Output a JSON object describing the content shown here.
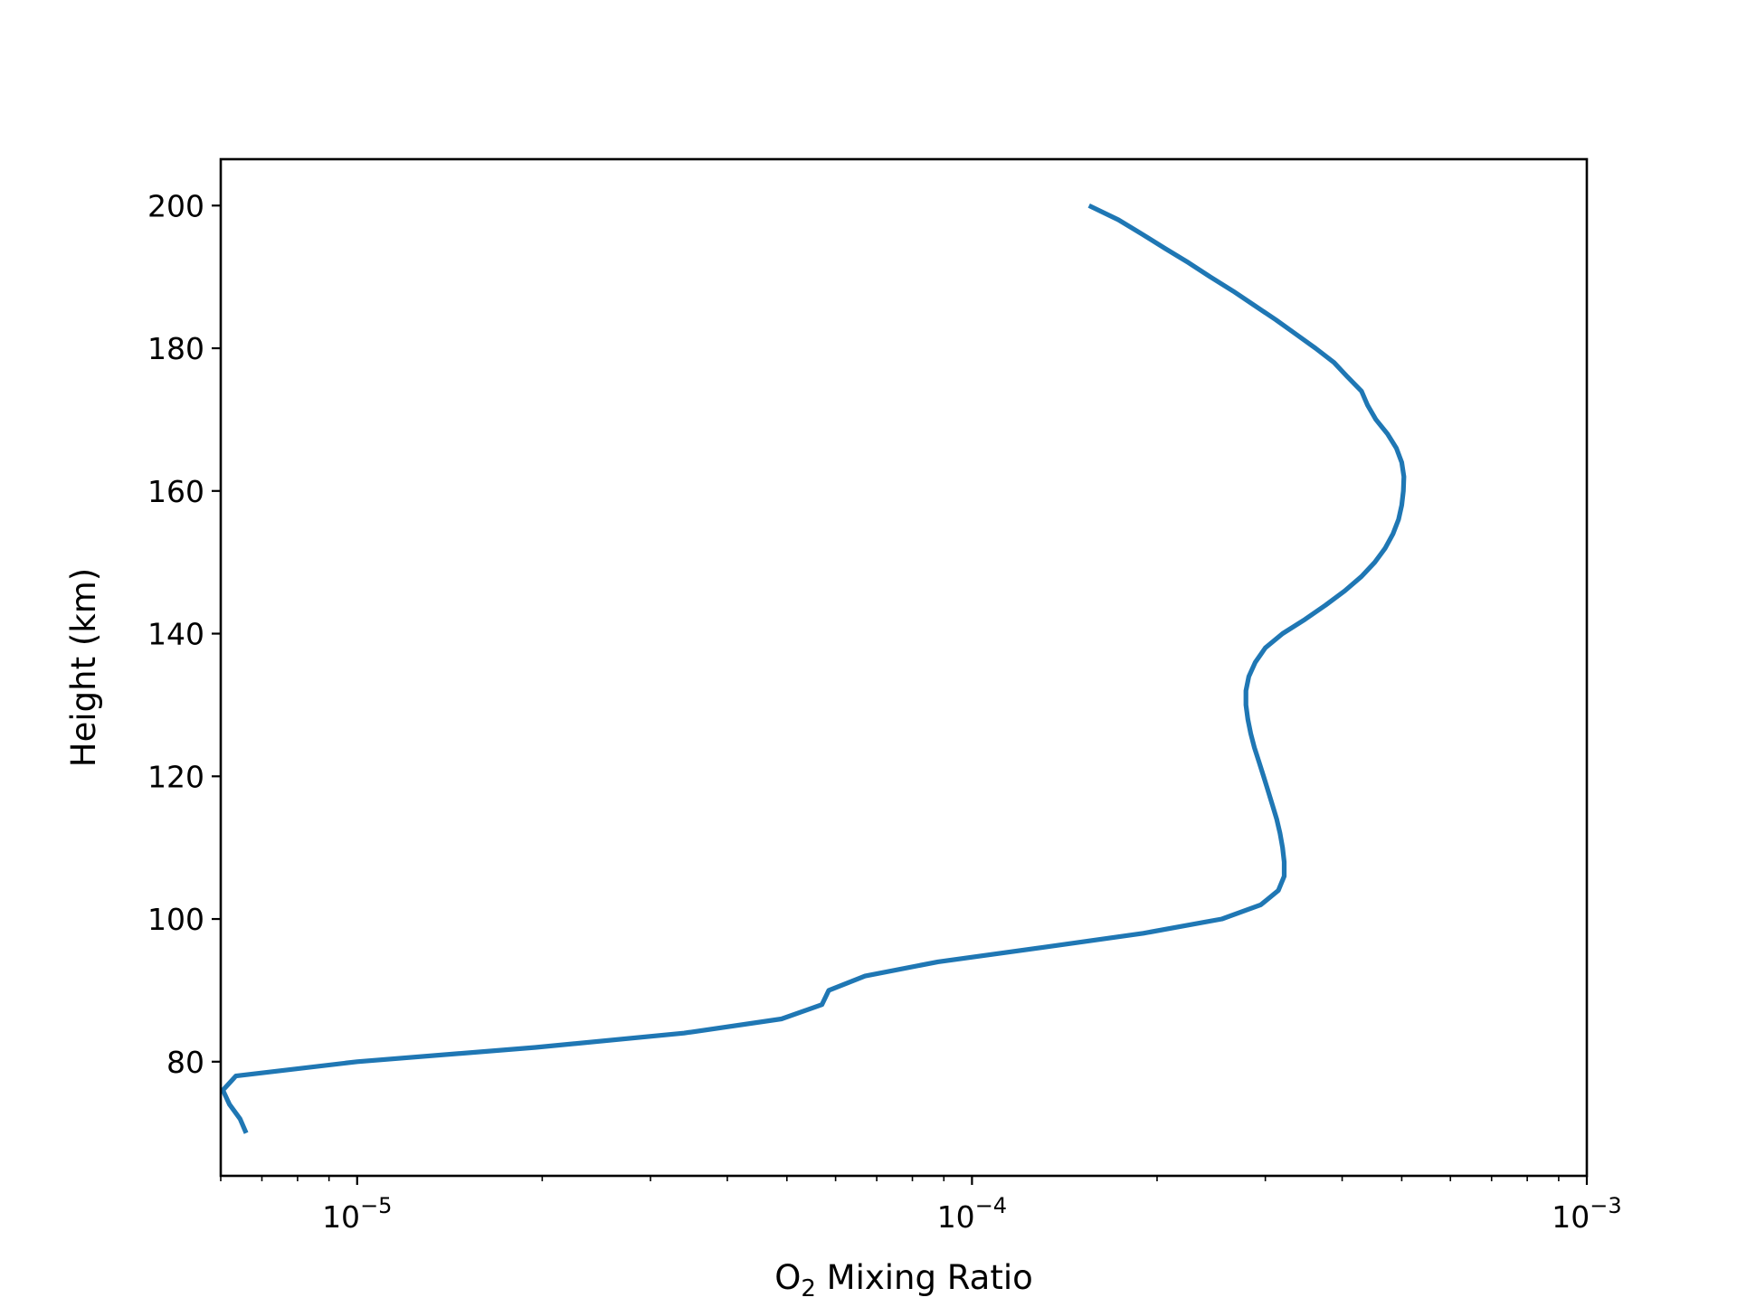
{
  "chart_data": {
    "type": "line",
    "title": "",
    "xlabel": {
      "base": "O",
      "subscript": "2",
      "rest": " Mixing Ratio"
    },
    "ylabel": "Height (km)",
    "x_scale": "log",
    "xlim": [
      6e-06,
      0.001
    ],
    "ylim": [
      64,
      206.5
    ],
    "x_ticks": [
      {
        "value": 1e-05,
        "base": "10",
        "exp": "−5"
      },
      {
        "value": 0.0001,
        "base": "10",
        "exp": "−4"
      },
      {
        "value": 0.001,
        "base": "10",
        "exp": "−3"
      }
    ],
    "y_ticks": [
      {
        "value": 80,
        "label": "80"
      },
      {
        "value": 100,
        "label": "100"
      },
      {
        "value": 120,
        "label": "120"
      },
      {
        "value": 140,
        "label": "140"
      },
      {
        "value": 160,
        "label": "160"
      },
      {
        "value": 180,
        "label": "180"
      },
      {
        "value": 200,
        "label": "200"
      }
    ],
    "grid": false,
    "legend": "none",
    "series": [
      {
        "color": "#1f77b4",
        "points": [
          [
            6.6e-06,
            70
          ],
          [
            6.45e-06,
            72
          ],
          [
            6.2e-06,
            74
          ],
          [
            6.05e-06,
            76
          ],
          [
            6.35e-06,
            78
          ],
          [
            1e-05,
            80
          ],
          [
            1.95e-05,
            82
          ],
          [
            3.4e-05,
            84
          ],
          [
            4.9e-05,
            86
          ],
          [
            5.7e-05,
            88
          ],
          [
            5.85e-05,
            90
          ],
          [
            6.7e-05,
            92
          ],
          [
            8.8e-05,
            94
          ],
          [
            0.00013,
            96
          ],
          [
            0.00019,
            98
          ],
          [
            0.000255,
            100
          ],
          [
            0.000295,
            102
          ],
          [
            0.000315,
            104
          ],
          [
            0.000322,
            106
          ],
          [
            0.000322,
            108
          ],
          [
            0.00032,
            110
          ],
          [
            0.000317,
            112
          ],
          [
            0.000313,
            114
          ],
          [
            0.000308,
            116
          ],
          [
            0.000303,
            118
          ],
          [
            0.000298,
            120
          ],
          [
            0.000293,
            122
          ],
          [
            0.000288,
            124
          ],
          [
            0.000284,
            126
          ],
          [
            0.000281,
            128
          ],
          [
            0.000279,
            130
          ],
          [
            0.000279,
            132
          ],
          [
            0.000282,
            134
          ],
          [
            0.000289,
            136
          ],
          [
            0.0003,
            138
          ],
          [
            0.00032,
            140
          ],
          [
            0.000348,
            142
          ],
          [
            0.000376,
            144
          ],
          [
            0.000404,
            146
          ],
          [
            0.00043,
            148
          ],
          [
            0.000452,
            150
          ],
          [
            0.00047,
            152
          ],
          [
            0.000484,
            154
          ],
          [
            0.000494,
            156
          ],
          [
            0.0005,
            158
          ],
          [
            0.000503,
            160
          ],
          [
            0.000504,
            162
          ],
          [
            0.0005,
            164
          ],
          [
            0.00049,
            166
          ],
          [
            0.000474,
            168
          ],
          [
            0.000454,
            170
          ],
          [
            0.00044,
            172
          ],
          [
            0.00043,
            174
          ],
          [
            0.000408,
            176
          ],
          [
            0.000388,
            178
          ],
          [
            0.000362,
            180
          ],
          [
            0.000336,
            182
          ],
          [
            0.000312,
            184
          ],
          [
            0.000288,
            186
          ],
          [
            0.000266,
            188
          ],
          [
            0.000244,
            190
          ],
          [
            0.000225,
            192
          ],
          [
            0.000206,
            194
          ],
          [
            0.000189,
            196
          ],
          [
            0.000173,
            198
          ],
          [
            0.000155,
            200
          ]
        ]
      }
    ]
  }
}
